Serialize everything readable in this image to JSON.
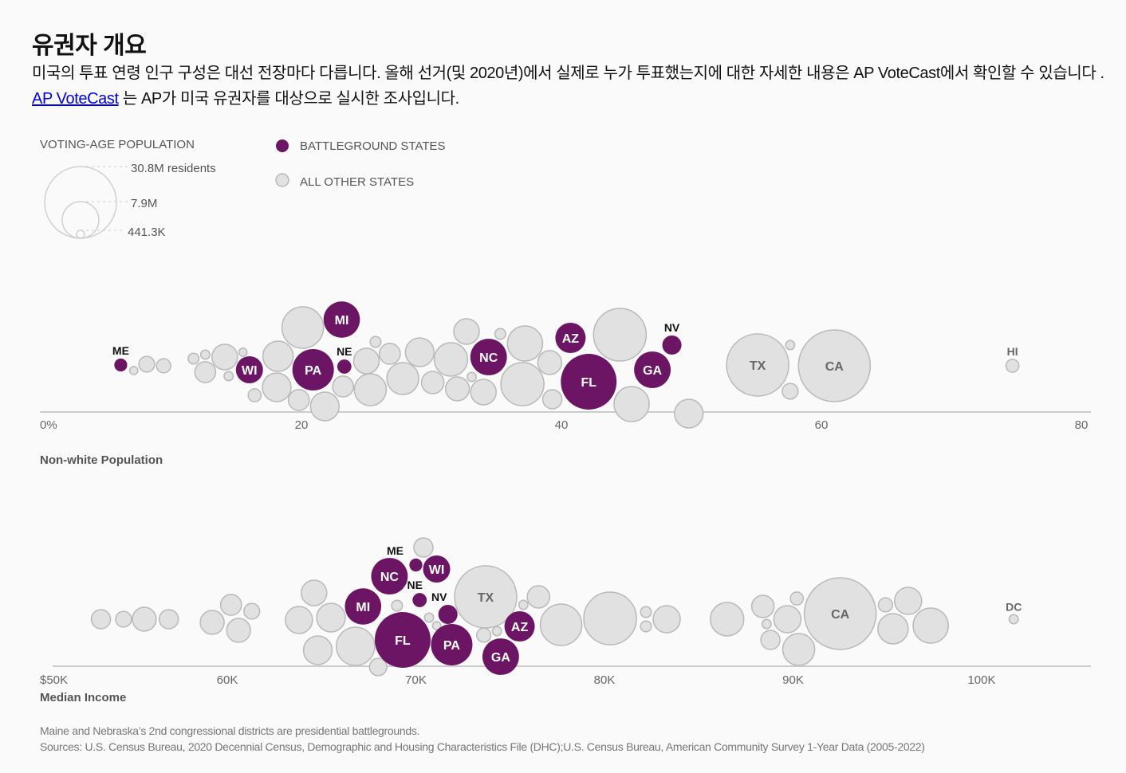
{
  "header": {
    "title": "유권자 개요",
    "intro_text": "미국의 투표 연령 인구 구성은 대선 전장마다 다릅니다. 올해 선거(및 2020년)에서 실제로 누가 투표했는지에 대한 자세한 내용은 AP VoteCast에서 확인할 수 있습니다 .",
    "link_label": "AP VoteCast",
    "intro_text_after": "는 AP가 미국 유권자를 대상으로 실시한 조사입니다."
  },
  "legend": {
    "size_title": "VOTING-AGE POPULATION",
    "size_labels": [
      "30.8M residents",
      "7.9M",
      "441.3K"
    ],
    "size_values_millions": [
      30.8,
      7.9,
      0.4413
    ],
    "battleground_label": "BATTLEGROUND STATES",
    "other_label": "ALL OTHER STATES"
  },
  "colors": {
    "battleground": "#6d1565",
    "other_fill": "#e1e1e1",
    "other_stroke": "#b9b9b9",
    "axis": "#cccccc",
    "link": "#0000ee"
  },
  "chart_data": [
    {
      "type": "scatter",
      "subtype": "beeswarm",
      "xlabel": "Non-white Population",
      "xlim": [
        0,
        80
      ],
      "ticks": [
        {
          "value": 0,
          "label": "0%"
        },
        {
          "value": 20,
          "label": "20"
        },
        {
          "value": 40,
          "label": "40"
        },
        {
          "value": 60,
          "label": "60"
        },
        {
          "value": 80,
          "label": "80"
        }
      ],
      "size_encoding": "voting-age population (millions)",
      "points": [
        {
          "label": "",
          "value": 7.1,
          "pop": 0.4,
          "battleground": false
        },
        {
          "label": "",
          "value": 8.1,
          "pop": 1.5,
          "battleground": false
        },
        {
          "label": "",
          "value": 9.4,
          "pop": 1.2,
          "battleground": false
        },
        {
          "label": "",
          "value": 11.7,
          "pop": 0.7,
          "battleground": false
        },
        {
          "label": "",
          "value": 12.6,
          "pop": 0.5,
          "battleground": false
        },
        {
          "label": "",
          "value": 12.6,
          "pop": 2.6,
          "battleground": false
        },
        {
          "label": "",
          "value": 14.1,
          "pop": 3.9,
          "battleground": false
        },
        {
          "label": "",
          "value": 15.5,
          "pop": 0.4,
          "battleground": false
        },
        {
          "label": "",
          "value": 14.4,
          "pop": 0.5,
          "battleground": false
        },
        {
          "label": "",
          "value": 16.4,
          "pop": 1.0,
          "battleground": false
        },
        {
          "label": "",
          "value": 18.2,
          "pop": 5.5,
          "battleground": false
        },
        {
          "label": "",
          "value": 18.1,
          "pop": 4.9,
          "battleground": false
        },
        {
          "label": "",
          "value": 20.1,
          "pop": 10.3,
          "battleground": false
        },
        {
          "label": "",
          "value": 19.8,
          "pop": 2.6,
          "battleground": false
        },
        {
          "label": "",
          "value": 21.8,
          "pop": 4.9,
          "battleground": false
        },
        {
          "label": "",
          "value": 23.2,
          "pop": 2.6,
          "battleground": false
        },
        {
          "label": "",
          "value": 25.7,
          "pop": 0.7,
          "battleground": false
        },
        {
          "label": "",
          "value": 25.0,
          "pop": 3.9,
          "battleground": false
        },
        {
          "label": "",
          "value": 26.8,
          "pop": 2.6,
          "battleground": false
        },
        {
          "label": "",
          "value": 25.3,
          "pop": 6.1,
          "battleground": false
        },
        {
          "label": "",
          "value": 27.8,
          "pop": 6.1,
          "battleground": false
        },
        {
          "label": "",
          "value": 29.1,
          "pop": 4.9,
          "battleground": false
        },
        {
          "label": "",
          "value": 30.1,
          "pop": 3.0,
          "battleground": false
        },
        {
          "label": "",
          "value": 31.5,
          "pop": 6.7,
          "battleground": false
        },
        {
          "label": "",
          "value": 32.0,
          "pop": 3.4,
          "battleground": false
        },
        {
          "label": "",
          "value": 32.7,
          "pop": 3.9,
          "battleground": false
        },
        {
          "label": "",
          "value": 33.1,
          "pop": 0.5,
          "battleground": false
        },
        {
          "label": "",
          "value": 34.0,
          "pop": 3.9,
          "battleground": false
        },
        {
          "label": "",
          "value": 35.3,
          "pop": 0.7,
          "battleground": false
        },
        {
          "label": "",
          "value": 37.2,
          "pop": 7.4,
          "battleground": false
        },
        {
          "label": "",
          "value": 37.0,
          "pop": 11.1,
          "battleground": false
        },
        {
          "label": "",
          "value": 39.1,
          "pop": 3.4,
          "battleground": false
        },
        {
          "label": "",
          "value": 39.3,
          "pop": 2.2,
          "battleground": false
        },
        {
          "label": "",
          "value": 44.5,
          "pop": 16.6,
          "battleground": false
        },
        {
          "label": "",
          "value": 45.4,
          "pop": 7.4,
          "battleground": false
        },
        {
          "label": "",
          "value": 49.8,
          "pop": 4.9,
          "battleground": false
        },
        {
          "label": "TX",
          "value": 55.1,
          "pop": 23.1,
          "battleground": false
        },
        {
          "label": "",
          "value": 57.6,
          "pop": 0.5,
          "battleground": false
        },
        {
          "label": "",
          "value": 57.6,
          "pop": 1.5,
          "battleground": false
        },
        {
          "label": "CA",
          "value": 61.0,
          "pop": 30.8,
          "battleground": false
        },
        {
          "label": "HI",
          "value": 74.7,
          "pop": 1.0,
          "battleground": false
        },
        {
          "label": "ME",
          "value": 6.1,
          "pop": 1.0,
          "battleground": true
        },
        {
          "label": "WI",
          "value": 16.0,
          "pop": 4.4,
          "battleground": true
        },
        {
          "label": "PA",
          "value": 20.9,
          "pop": 10.3,
          "battleground": true
        },
        {
          "label": "MI",
          "value": 23.1,
          "pop": 7.9,
          "battleground": true
        },
        {
          "label": "NE",
          "value": 23.3,
          "pop": 1.2,
          "battleground": true
        },
        {
          "label": "NC",
          "value": 34.4,
          "pop": 8.0,
          "battleground": true
        },
        {
          "label": "AZ",
          "value": 40.7,
          "pop": 5.5,
          "battleground": true
        },
        {
          "label": "FL",
          "value": 42.1,
          "pop": 18.6,
          "battleground": true
        },
        {
          "label": "GA",
          "value": 47.0,
          "pop": 8.0,
          "battleground": true
        },
        {
          "label": "NV",
          "value": 48.5,
          "pop": 2.2,
          "battleground": true
        }
      ]
    },
    {
      "type": "scatter",
      "subtype": "beeswarm",
      "xlabel": "Median Income",
      "xlim": [
        50000,
        105000
      ],
      "ticks": [
        {
          "value": 50000,
          "label": "$50K"
        },
        {
          "value": 60000,
          "label": "60K"
        },
        {
          "value": 70000,
          "label": "70K"
        },
        {
          "value": 80000,
          "label": "80K"
        },
        {
          "value": 90000,
          "label": "90K"
        },
        {
          "value": 100000,
          "label": "100K"
        }
      ],
      "size_encoding": "voting-age population (millions)",
      "points": [
        {
          "label": "",
          "value": 53300,
          "pop": 2.2,
          "battleground": false
        },
        {
          "label": "",
          "value": 54500,
          "pop": 1.5,
          "battleground": false
        },
        {
          "label": "",
          "value": 55600,
          "pop": 3.4,
          "battleground": false
        },
        {
          "label": "",
          "value": 56900,
          "pop": 2.2,
          "battleground": false
        },
        {
          "label": "",
          "value": 59200,
          "pop": 3.4,
          "battleground": false
        },
        {
          "label": "",
          "value": 60200,
          "pop": 2.6,
          "battleground": false
        },
        {
          "label": "",
          "value": 61300,
          "pop": 1.5,
          "battleground": false
        },
        {
          "label": "",
          "value": 60600,
          "pop": 3.4,
          "battleground": false
        },
        {
          "label": "",
          "value": 64600,
          "pop": 3.9,
          "battleground": false
        },
        {
          "label": "",
          "value": 63800,
          "pop": 4.4,
          "battleground": false
        },
        {
          "label": "",
          "value": 65500,
          "pop": 4.9,
          "battleground": false
        },
        {
          "label": "",
          "value": 64800,
          "pop": 4.9,
          "battleground": false
        },
        {
          "label": "",
          "value": 66800,
          "pop": 8.8,
          "battleground": false
        },
        {
          "label": "",
          "value": 68000,
          "pop": 1.8,
          "battleground": false
        },
        {
          "label": "",
          "value": 70400,
          "pop": 2.2,
          "battleground": false
        },
        {
          "label": "",
          "value": 69000,
          "pop": 0.7,
          "battleground": false
        },
        {
          "label": "",
          "value": 70700,
          "pop": 0.5,
          "battleground": false
        },
        {
          "label": "",
          "value": 71100,
          "pop": 0.4,
          "battleground": false
        },
        {
          "label": "TX",
          "value": 73700,
          "pop": 23.1,
          "battleground": false
        },
        {
          "label": "",
          "value": 73600,
          "pop": 1.2,
          "battleground": false
        },
        {
          "label": "",
          "value": 74300,
          "pop": 0.5,
          "battleground": false
        },
        {
          "label": "",
          "value": 75700,
          "pop": 0.5,
          "battleground": false
        },
        {
          "label": "",
          "value": 76500,
          "pop": 3.0,
          "battleground": false
        },
        {
          "label": "",
          "value": 77700,
          "pop": 10.3,
          "battleground": false
        },
        {
          "label": "",
          "value": 80300,
          "pop": 16.6,
          "battleground": false
        },
        {
          "label": "",
          "value": 82200,
          "pop": 0.7,
          "battleground": false
        },
        {
          "label": "",
          "value": 82200,
          "pop": 0.7,
          "battleground": false
        },
        {
          "label": "",
          "value": 83300,
          "pop": 4.4,
          "battleground": false
        },
        {
          "label": "",
          "value": 86500,
          "pop": 6.7,
          "battleground": false
        },
        {
          "label": "",
          "value": 88400,
          "pop": 3.0,
          "battleground": false
        },
        {
          "label": "",
          "value": 90200,
          "pop": 1.0,
          "battleground": false
        },
        {
          "label": "",
          "value": 88600,
          "pop": 0.5,
          "battleground": false
        },
        {
          "label": "",
          "value": 89700,
          "pop": 4.4,
          "battleground": false
        },
        {
          "label": "",
          "value": 88800,
          "pop": 2.2,
          "battleground": false
        },
        {
          "label": "",
          "value": 90300,
          "pop": 6.1,
          "battleground": false
        },
        {
          "label": "CA",
          "value": 92500,
          "pop": 30.8,
          "battleground": false
        },
        {
          "label": "",
          "value": 94900,
          "pop": 1.2,
          "battleground": false
        },
        {
          "label": "",
          "value": 96100,
          "pop": 4.4,
          "battleground": false
        },
        {
          "label": "",
          "value": 95300,
          "pop": 5.5,
          "battleground": false
        },
        {
          "label": "",
          "value": 97300,
          "pop": 7.4,
          "battleground": false
        },
        {
          "label": "DC",
          "value": 101700,
          "pop": 0.5,
          "battleground": false
        },
        {
          "label": "MI",
          "value": 67200,
          "pop": 7.9,
          "battleground": true
        },
        {
          "label": "NC",
          "value": 68600,
          "pop": 8.0,
          "battleground": true
        },
        {
          "label": "ME",
          "value": 70000,
          "pop": 1.0,
          "battleground": true
        },
        {
          "label": "WI",
          "value": 71100,
          "pop": 4.4,
          "battleground": true
        },
        {
          "label": "NE",
          "value": 70200,
          "pop": 1.2,
          "battleground": true
        },
        {
          "label": "FL",
          "value": 69300,
          "pop": 18.6,
          "battleground": true
        },
        {
          "label": "NV",
          "value": 71700,
          "pop": 2.2,
          "battleground": true
        },
        {
          "label": "PA",
          "value": 71900,
          "pop": 10.3,
          "battleground": true
        },
        {
          "label": "AZ",
          "value": 75500,
          "pop": 5.5,
          "battleground": true
        },
        {
          "label": "GA",
          "value": 74500,
          "pop": 8.0,
          "battleground": true
        }
      ]
    }
  ],
  "footer": {
    "note": "Maine and Nebraska’s 2nd congressional districts are presidential battlegrounds.",
    "sources": "Sources: U.S. Census Bureau, 2020 Decennial Census, Demographic and Housing Characteristics File (DHC);U.S. Census Bureau, American Community Survey 1-Year Data (2005-2022)"
  }
}
